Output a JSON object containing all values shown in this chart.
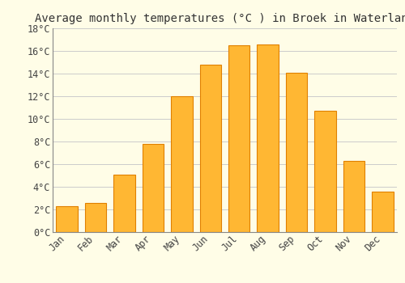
{
  "title": "Average monthly temperatures (°C ) in Broek in Waterland",
  "months": [
    "Jan",
    "Feb",
    "Mar",
    "Apr",
    "May",
    "Jun",
    "Jul",
    "Aug",
    "Sep",
    "Oct",
    "Nov",
    "Dec"
  ],
  "values": [
    2.3,
    2.6,
    5.1,
    7.8,
    12.0,
    14.8,
    16.5,
    16.6,
    14.1,
    10.7,
    6.3,
    3.6
  ],
  "bar_color": "#FFB733",
  "bar_edge_color": "#E08000",
  "background_color": "#FFFDE7",
  "grid_color": "#CCCCCC",
  "title_fontsize": 10,
  "tick_fontsize": 8.5,
  "ylim": [
    0,
    18
  ],
  "yticks": [
    0,
    2,
    4,
    6,
    8,
    10,
    12,
    14,
    16,
    18
  ]
}
